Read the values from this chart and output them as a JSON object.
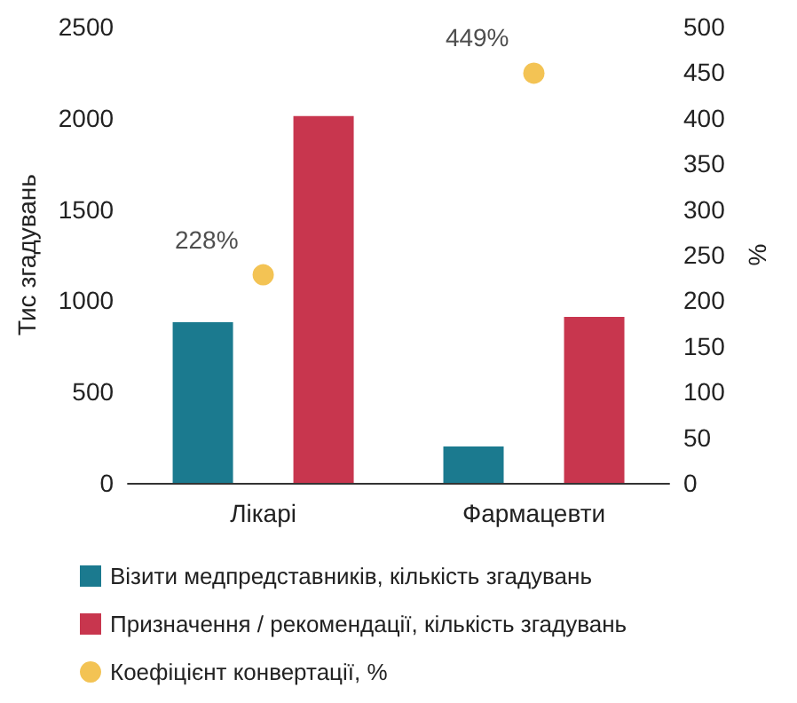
{
  "chart_data": {
    "type": "bar",
    "categories": [
      "Лікарі",
      "Фармацевти"
    ],
    "ylabel": "Тис згадувань",
    "y2label": "%",
    "ylim": [
      0,
      2500
    ],
    "yticks": [
      0,
      500,
      1000,
      1500,
      2000,
      2500
    ],
    "y2lim": [
      0,
      500
    ],
    "y2ticks": [
      0,
      50,
      100,
      150,
      200,
      250,
      300,
      350,
      400,
      450,
      500
    ],
    "series": [
      {
        "name": "Візити медпредставників, кількість згадувань",
        "color": "#1b7a8f",
        "values": [
          880,
          200
        ]
      },
      {
        "name": "Призначення / рекомендації, кількість згадувань",
        "color": "#c8364e",
        "values": [
          2010,
          910
        ]
      },
      {
        "name": "Коефіцієнт конвертації, %",
        "type": "scatter",
        "axis": "y2",
        "color": "#f0b429",
        "x": [
          "Лікарі",
          "Фармацевти"
        ],
        "values": [
          228,
          449
        ],
        "value_labels": [
          "228%",
          "449%"
        ]
      }
    ],
    "grid": false,
    "legend": "bottom",
    "marker": "circle"
  }
}
